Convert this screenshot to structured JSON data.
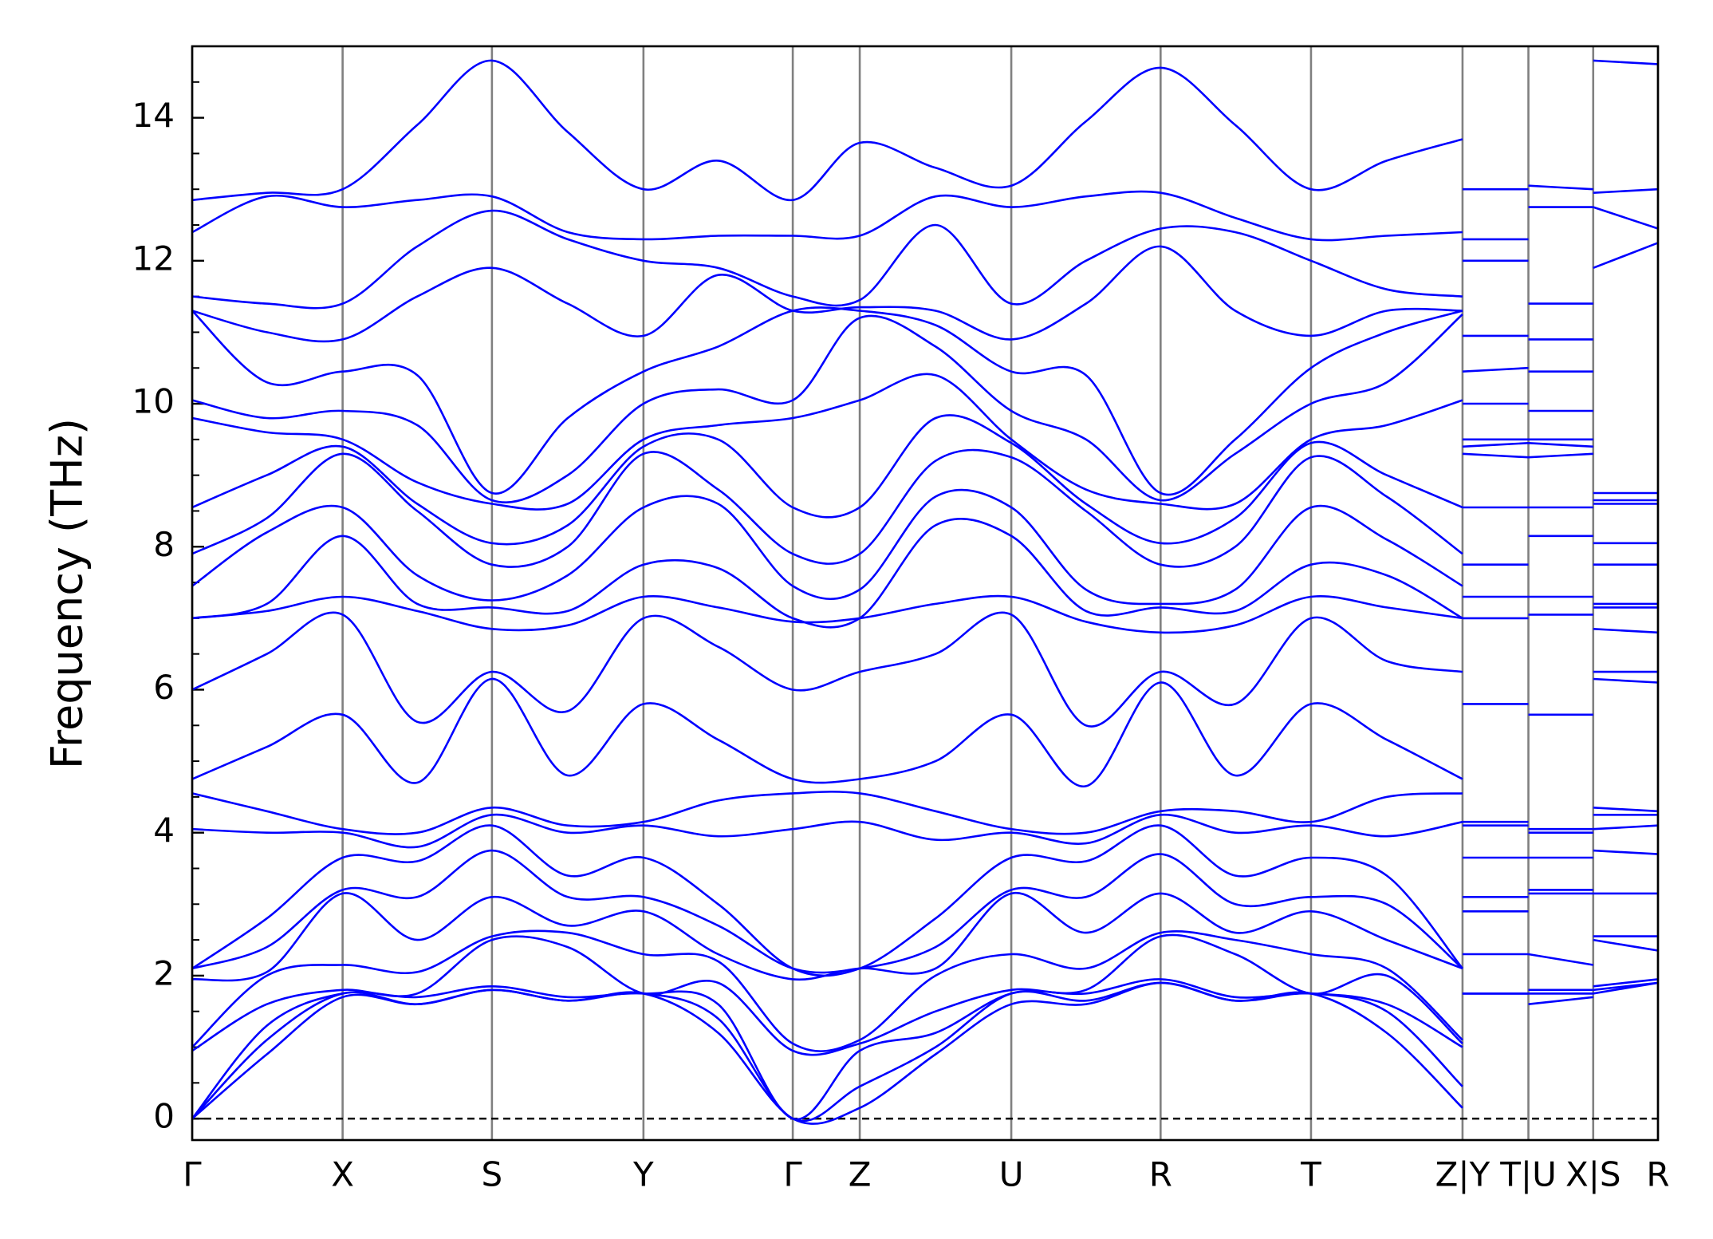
{
  "chart_data": {
    "type": "line",
    "ylabel": "Frequency (THz)",
    "color": "#0000ff",
    "xlim": [
      0,
      13.35
    ],
    "ylim": [
      -0.3,
      15
    ],
    "yticks": [
      0,
      2,
      4,
      6,
      8,
      10,
      12,
      14
    ],
    "yminorticks": [
      0.5,
      1,
      1.5,
      2.5,
      3,
      3.5,
      4.5,
      5,
      5.5,
      6.5,
      7,
      7.5,
      8.5,
      9,
      9.5,
      10.5,
      11,
      11.5,
      12.5,
      13,
      13.5,
      14.5
    ],
    "xticks": [
      {
        "value": 0,
        "label": "Γ"
      },
      {
        "value": 1.37,
        "label": "X"
      },
      {
        "value": 2.73,
        "label": "S"
      },
      {
        "value": 4.11,
        "label": "Y"
      },
      {
        "value": 5.47,
        "label": "Γ"
      },
      {
        "value": 6.08,
        "label": "Z"
      },
      {
        "value": 7.46,
        "label": "U"
      },
      {
        "value": 8.82,
        "label": "R"
      },
      {
        "value": 10.19,
        "label": "T"
      },
      {
        "value": 11.57,
        "label": "Z|Y"
      },
      {
        "value": 12.17,
        "label": "T|U"
      },
      {
        "value": 12.76,
        "label": "X|S"
      },
      {
        "value": 13.35,
        "label": "R"
      }
    ],
    "xgrid": true,
    "hlines": [
      0
    ],
    "x": [
      0,
      0.68,
      1.37,
      2.05,
      2.73,
      3.42,
      4.11,
      4.79,
      5.47,
      6.08,
      6.77,
      7.46,
      8.14,
      8.82,
      9.5,
      10.19,
      10.88,
      11.57,
      11.57,
      11.57,
      12.17,
      12.17,
      12.17,
      12.76,
      12.76,
      12.76,
      13.35
    ],
    "series": [
      {
        "values": [
          0,
          0.9,
          1.7,
          1.6,
          1.8,
          1.65,
          1.75,
          1.2,
          0,
          0.15,
          0.9,
          1.6,
          1.6,
          1.9,
          1.65,
          1.75,
          1.2,
          0.15,
          null,
          1.75,
          1.75,
          null,
          1.6,
          1.7,
          null,
          1.75,
          1.9
        ]
      },
      {
        "values": [
          0,
          1.1,
          1.75,
          1.6,
          1.8,
          1.65,
          1.75,
          1.4,
          0,
          0.45,
          1.0,
          1.75,
          1.65,
          1.9,
          1.65,
          1.75,
          1.5,
          0.45,
          null,
          1.75,
          1.75,
          null,
          1.75,
          1.75,
          null,
          1.8,
          1.9
        ]
      },
      {
        "values": [
          0,
          1.3,
          1.75,
          1.7,
          1.85,
          1.7,
          1.75,
          1.6,
          0,
          0.95,
          1.2,
          1.75,
          1.75,
          1.95,
          1.7,
          1.75,
          1.6,
          1.0,
          null,
          1.75,
          1.75,
          null,
          1.75,
          1.75,
          null,
          1.85,
          1.95
        ]
      },
      {
        "values": [
          0.95,
          1.6,
          1.8,
          1.75,
          2.5,
          2.4,
          1.75,
          1.9,
          0.95,
          1.05,
          1.5,
          1.8,
          1.8,
          2.55,
          2.3,
          1.75,
          2.0,
          1.05,
          null,
          1.75,
          1.75,
          null,
          1.8,
          1.8,
          null,
          2.5,
          2.35
        ]
      },
      {
        "values": [
          1.0,
          2.0,
          2.15,
          2.05,
          2.55,
          2.6,
          2.3,
          2.2,
          1.05,
          1.1,
          2.0,
          2.3,
          2.1,
          2.6,
          2.5,
          2.3,
          2.1,
          1.1,
          null,
          2.3,
          2.3,
          null,
          2.3,
          2.15,
          null,
          2.55,
          2.55
        ]
      },
      {
        "values": [
          1.95,
          2.05,
          3.15,
          2.5,
          3.1,
          2.7,
          2.9,
          2.3,
          1.95,
          2.1,
          2.1,
          3.15,
          2.6,
          3.15,
          2.6,
          2.9,
          2.5,
          2.1,
          null,
          2.9,
          2.9,
          null,
          3.15,
          3.15,
          null,
          3.15,
          3.15
        ]
      },
      {
        "values": [
          2.1,
          2.4,
          3.2,
          3.1,
          3.75,
          3.1,
          3.1,
          2.7,
          2.1,
          2.1,
          2.4,
          3.2,
          3.1,
          3.7,
          3.0,
          3.1,
          3.0,
          2.1,
          null,
          3.1,
          3.1,
          null,
          3.2,
          3.2,
          null,
          3.75,
          3.7
        ]
      },
      {
        "values": [
          2.1,
          2.8,
          3.65,
          3.6,
          4.1,
          3.4,
          3.65,
          3.0,
          2.1,
          2.1,
          2.8,
          3.65,
          3.6,
          4.1,
          3.4,
          3.65,
          3.4,
          2.1,
          null,
          3.65,
          3.65,
          null,
          3.65,
          3.65,
          null,
          4.05,
          4.1
        ]
      },
      {
        "values": [
          4.05,
          4.0,
          4.0,
          3.8,
          4.25,
          4.0,
          4.1,
          3.95,
          4.05,
          4.15,
          3.9,
          4.0,
          3.85,
          4.25,
          4.0,
          4.1,
          3.95,
          4.15,
          null,
          4.1,
          4.1,
          null,
          4.0,
          4.0,
          null,
          4.25,
          4.25
        ]
      },
      {
        "values": [
          4.55,
          4.3,
          4.05,
          4.0,
          4.35,
          4.1,
          4.15,
          4.45,
          4.55,
          4.55,
          4.3,
          4.05,
          4.0,
          4.3,
          4.3,
          4.15,
          4.5,
          4.55,
          null,
          4.15,
          4.15,
          null,
          4.05,
          4.05,
          null,
          4.35,
          4.3
        ]
      },
      {
        "values": [
          4.75,
          5.2,
          5.65,
          4.7,
          6.15,
          4.8,
          5.8,
          5.3,
          4.75,
          4.75,
          5.0,
          5.65,
          4.65,
          6.1,
          4.8,
          5.8,
          5.3,
          4.75,
          null,
          5.8,
          5.8,
          null,
          5.65,
          5.65,
          null,
          6.15,
          6.1
        ]
      },
      {
        "values": [
          6.0,
          6.5,
          7.05,
          5.55,
          6.25,
          5.7,
          7.0,
          6.6,
          6.0,
          6.25,
          6.5,
          7.05,
          5.5,
          6.25,
          5.8,
          7.0,
          6.4,
          6.25,
          null,
          7.0,
          7.0,
          null,
          7.05,
          7.05,
          null,
          6.25,
          6.25
        ]
      },
      {
        "values": [
          7.0,
          7.1,
          7.3,
          7.1,
          6.85,
          6.9,
          7.3,
          7.15,
          6.95,
          7.0,
          7.2,
          7.3,
          6.95,
          6.8,
          6.9,
          7.3,
          7.15,
          7.0,
          null,
          7.3,
          7.3,
          null,
          7.3,
          7.3,
          null,
          6.85,
          6.8
        ]
      },
      {
        "values": [
          7.0,
          7.2,
          8.15,
          7.2,
          7.15,
          7.1,
          7.75,
          7.7,
          7.0,
          7.0,
          8.3,
          8.15,
          7.1,
          7.15,
          7.1,
          7.75,
          7.6,
          7.0,
          null,
          7.75,
          7.75,
          null,
          8.15,
          8.15,
          null,
          7.15,
          7.15
        ]
      },
      {
        "values": [
          7.45,
          8.2,
          8.55,
          7.6,
          7.25,
          7.6,
          8.55,
          8.6,
          7.45,
          7.4,
          8.7,
          8.55,
          7.4,
          7.2,
          7.4,
          8.55,
          8.1,
          7.45,
          null,
          8.55,
          8.55,
          null,
          8.55,
          8.55,
          null,
          7.2,
          7.2
        ]
      },
      {
        "values": [
          7.9,
          8.4,
          9.3,
          8.5,
          7.75,
          8.0,
          9.3,
          8.8,
          7.9,
          7.9,
          9.2,
          9.25,
          8.5,
          7.75,
          8.0,
          9.25,
          8.7,
          7.9,
          null,
          9.3,
          9.25,
          null,
          9.25,
          9.3,
          null,
          7.75,
          7.75
        ]
      },
      {
        "values": [
          8.55,
          9.0,
          9.4,
          8.6,
          8.05,
          8.3,
          9.4,
          9.5,
          8.55,
          8.55,
          9.8,
          9.45,
          8.6,
          8.05,
          8.4,
          9.45,
          9.0,
          8.55,
          null,
          9.4,
          9.45,
          null,
          9.45,
          9.4,
          null,
          8.05,
          8.05
        ]
      },
      {
        "values": [
          9.8,
          9.6,
          9.5,
          8.9,
          8.6,
          8.6,
          9.5,
          9.7,
          9.8,
          10.05,
          10.4,
          9.5,
          8.8,
          8.6,
          8.6,
          9.5,
          9.7,
          10.05,
          null,
          9.5,
          9.5,
          null,
          9.5,
          9.5,
          null,
          8.6,
          8.6
        ]
      },
      {
        "values": [
          10.05,
          9.8,
          9.9,
          9.7,
          8.65,
          9.0,
          10.0,
          10.2,
          10.05,
          11.2,
          10.8,
          9.9,
          9.5,
          8.65,
          9.3,
          10.0,
          10.3,
          11.25,
          null,
          10.0,
          10.0,
          null,
          9.9,
          9.9,
          null,
          8.65,
          8.65
        ]
      },
      {
        "values": [
          11.3,
          10.3,
          10.45,
          10.4,
          8.75,
          9.8,
          10.45,
          10.8,
          11.3,
          11.3,
          11.1,
          10.45,
          10.4,
          8.75,
          9.5,
          10.5,
          11.0,
          11.3,
          null,
          10.45,
          10.5,
          null,
          10.45,
          10.45,
          null,
          8.75,
          8.75
        ]
      },
      {
        "values": [
          11.3,
          11.0,
          10.9,
          11.5,
          11.9,
          11.4,
          10.95,
          11.8,
          11.3,
          11.35,
          11.3,
          10.9,
          11.4,
          12.2,
          11.3,
          10.95,
          11.3,
          11.3,
          null,
          10.95,
          10.95,
          null,
          10.9,
          10.9,
          null,
          11.9,
          12.25
        ]
      },
      {
        "values": [
          11.5,
          11.4,
          11.4,
          12.2,
          12.7,
          12.3,
          12.0,
          11.9,
          11.5,
          11.45,
          12.5,
          11.4,
          12.0,
          12.45,
          12.4,
          12.0,
          11.6,
          11.5,
          null,
          12.0,
          12.0,
          null,
          11.4,
          11.4,
          null,
          12.75,
          12.45
        ]
      },
      {
        "values": [
          12.4,
          12.9,
          12.75,
          12.85,
          12.9,
          12.4,
          12.3,
          12.35,
          12.35,
          12.35,
          12.9,
          12.75,
          12.9,
          12.95,
          12.6,
          12.3,
          12.35,
          12.4,
          null,
          12.3,
          12.3,
          null,
          12.75,
          12.75,
          null,
          12.95,
          13.0
        ]
      },
      {
        "values": [
          12.85,
          12.95,
          13.0,
          13.9,
          14.8,
          13.8,
          13.0,
          13.4,
          12.85,
          13.65,
          13.3,
          13.05,
          13.95,
          14.7,
          13.9,
          13.0,
          13.4,
          13.7,
          null,
          13.0,
          13.0,
          null,
          13.05,
          13.0,
          null,
          14.8,
          14.75
        ]
      }
    ]
  }
}
